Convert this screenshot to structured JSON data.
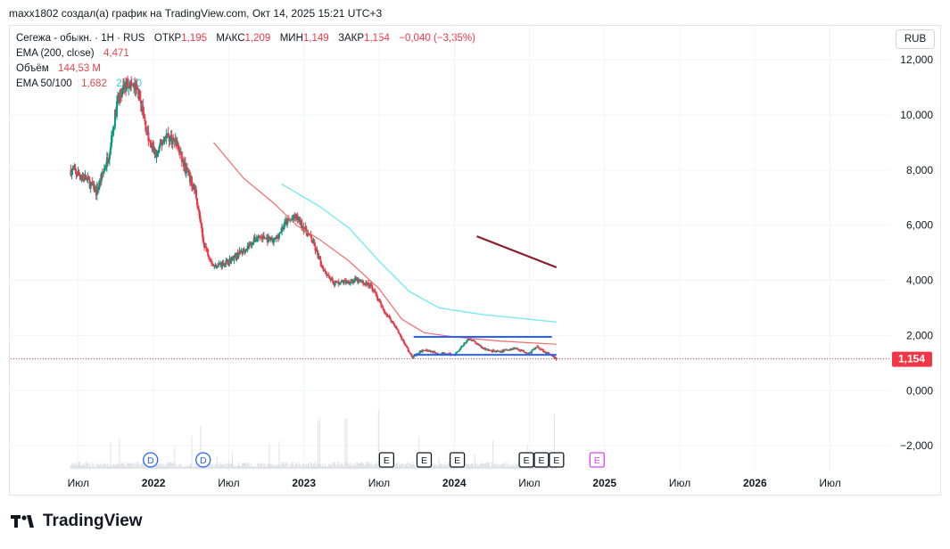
{
  "header": {
    "attribution": "maxx1802 создал(а) график на TradingView.com, Окт 14, 2025 15:21 UTC+3"
  },
  "legend": {
    "symbol": "Сегежа - обыкн. · 1Н · RUS",
    "open_label": "ОТКР",
    "open": "1,195",
    "high_label": "МАКС",
    "high": "1,209",
    "low_label": "МИН",
    "low": "1,149",
    "close_label": "ЗАКР",
    "close": "1,154",
    "change": "−0,040 (−3,35%)",
    "ema200_label": "EMA (200, close)",
    "ema200_value": "4,471",
    "volume_label": "Объём",
    "volume_value": "144,53 M",
    "ema50_100_label": "EMA 50/100",
    "ema50_value": "1,682",
    "ema100_value": "2,490"
  },
  "currency_button": "RUB",
  "price_label": "1,154",
  "brand": "TradingView",
  "colors": {
    "up": "#089981",
    "down": "#f23645",
    "ema200": "#8b1a2b",
    "ema50": "#f26b6b",
    "ema100": "#7ae8f0",
    "levels": "#2962ff",
    "events": "#2962ff",
    "earnings_future": "#e040fb"
  },
  "events": [
    {
      "label": "D",
      "kind": "dividend"
    },
    {
      "label": "D",
      "kind": "dividend"
    },
    {
      "label": "E",
      "kind": "earnings"
    },
    {
      "label": "E",
      "kind": "earnings"
    },
    {
      "label": "E",
      "kind": "earnings"
    },
    {
      "label": "E",
      "kind": "earnings"
    },
    {
      "label": "E",
      "kind": "earnings"
    },
    {
      "label": "E",
      "kind": "earnings"
    },
    {
      "label": "E",
      "kind": "earnings"
    }
  ],
  "chart_data": {
    "type": "candlestick",
    "x_ticks": [
      "Июл",
      "2022",
      "Июл",
      "2023",
      "Июл",
      "2024",
      "Июл",
      "2025",
      "Июл",
      "2026",
      "Июл"
    ],
    "y_ticks": [
      "12,000",
      "10,000",
      "8,000",
      "6,000",
      "4,000",
      "2,000",
      "0,000",
      "−2,000"
    ],
    "y_tick_values": [
      12,
      10,
      8,
      6,
      4,
      2,
      0,
      -2
    ],
    "ylim": [
      -2.9,
      13.2
    ],
    "xlim": [
      2021.05,
      2026.9
    ],
    "price_path": [
      [
        2021.45,
        8.0
      ],
      [
        2021.55,
        7.7
      ],
      [
        2021.62,
        7.2
      ],
      [
        2021.7,
        8.5
      ],
      [
        2021.76,
        10.5
      ],
      [
        2021.83,
        11.2
      ],
      [
        2021.9,
        10.8
      ],
      [
        2021.97,
        9.0
      ],
      [
        2022.02,
        8.5
      ],
      [
        2022.08,
        9.3
      ],
      [
        2022.15,
        9.0
      ],
      [
        2022.2,
        8.2
      ],
      [
        2022.28,
        7.2
      ],
      [
        2022.33,
        5.4
      ],
      [
        2022.4,
        4.5
      ],
      [
        2022.5,
        4.7
      ],
      [
        2022.6,
        5.1
      ],
      [
        2022.7,
        5.6
      ],
      [
        2022.8,
        5.4
      ],
      [
        2022.88,
        6.1
      ],
      [
        2022.95,
        6.3
      ],
      [
        2023.05,
        5.5
      ],
      [
        2023.12,
        4.5
      ],
      [
        2023.2,
        3.9
      ],
      [
        2023.35,
        4.0
      ],
      [
        2023.45,
        3.8
      ],
      [
        2023.52,
        3.0
      ],
      [
        2023.6,
        2.4
      ],
      [
        2023.68,
        1.6
      ],
      [
        2023.72,
        1.2
      ],
      [
        2023.8,
        1.5
      ],
      [
        2023.9,
        1.35
      ],
      [
        2024.0,
        1.3
      ],
      [
        2024.1,
        1.9
      ],
      [
        2024.2,
        1.5
      ],
      [
        2024.3,
        1.4
      ],
      [
        2024.4,
        1.55
      ],
      [
        2024.5,
        1.35
      ],
      [
        2024.55,
        1.6
      ],
      [
        2024.62,
        1.35
      ],
      [
        2024.68,
        1.15
      ]
    ],
    "ema200": [
      [
        2024.15,
        5.6
      ],
      [
        2024.68,
        4.471
      ]
    ],
    "ema50": [
      [
        2022.4,
        9.0
      ],
      [
        2022.6,
        7.7
      ],
      [
        2022.8,
        6.8
      ],
      [
        2022.95,
        6.0
      ],
      [
        2023.1,
        5.5
      ],
      [
        2023.3,
        4.7
      ],
      [
        2023.5,
        3.7
      ],
      [
        2023.65,
        2.6
      ],
      [
        2023.8,
        2.1
      ],
      [
        2024.0,
        1.95
      ],
      [
        2024.3,
        1.8
      ],
      [
        2024.68,
        1.682
      ]
    ],
    "ema100": [
      [
        2022.85,
        7.5
      ],
      [
        2023.1,
        6.7
      ],
      [
        2023.3,
        5.9
      ],
      [
        2023.5,
        4.7
      ],
      [
        2023.7,
        3.6
      ],
      [
        2023.9,
        3.0
      ],
      [
        2024.2,
        2.75
      ],
      [
        2024.68,
        2.49
      ]
    ],
    "levels": [
      {
        "value": 1.95,
        "from": 2023.73,
        "to": 2024.65
      },
      {
        "value": 1.3,
        "from": 2023.73,
        "to": 2024.68
      }
    ],
    "last_price": 1.154
  }
}
